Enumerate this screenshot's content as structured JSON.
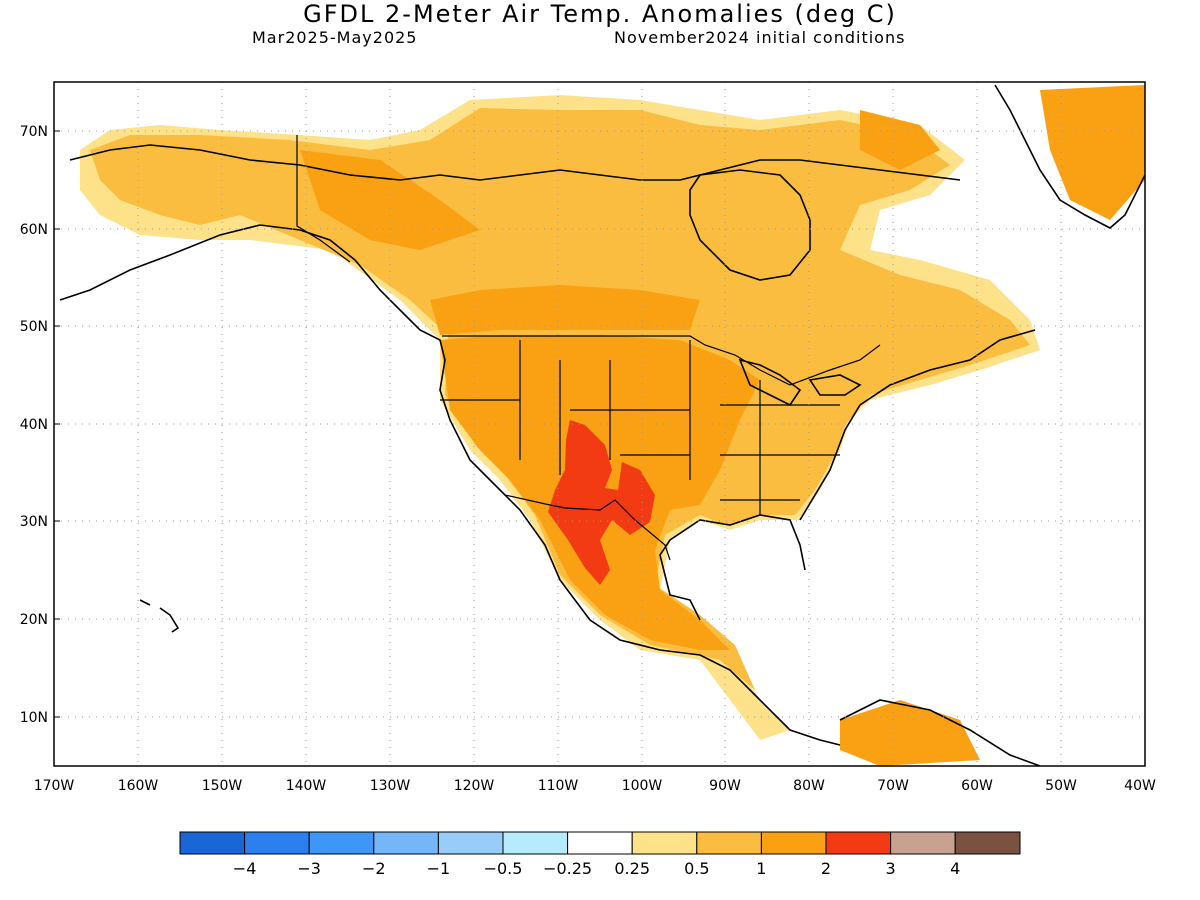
{
  "header": {
    "title": "GFDL 2-Meter Air Temp. Anomalies (deg C)",
    "period": "Mar2025-May2025",
    "init": "November2024 initial conditions"
  },
  "map": {
    "lon_range": [
      -170,
      -40
    ],
    "lat_range": [
      5,
      75
    ],
    "lat_ticks": [
      "10N",
      "20N",
      "30N",
      "40N",
      "50N",
      "60N",
      "70N"
    ],
    "lon_ticks": [
      "170W",
      "160W",
      "150W",
      "140W",
      "130W",
      "120W",
      "110W",
      "100W",
      "90W",
      "80W",
      "70W",
      "60W",
      "50W",
      "40W"
    ],
    "grid": "dotted"
  },
  "colorbar": {
    "colors": [
      "#1a66d6",
      "#2b7fef",
      "#3e96f6",
      "#74b6f8",
      "#98cdf9",
      "#b4ecfb",
      "#ffffff",
      "#fde28a",
      "#fbbd3f",
      "#f9a113",
      "#f23a13",
      "#c9a191",
      "#7b5242"
    ],
    "labels": [
      "−4",
      "−3",
      "−2",
      "−1",
      "−0.5",
      "−0.25",
      "0.25",
      "0.5",
      "1",
      "2",
      "3",
      "4"
    ]
  }
}
